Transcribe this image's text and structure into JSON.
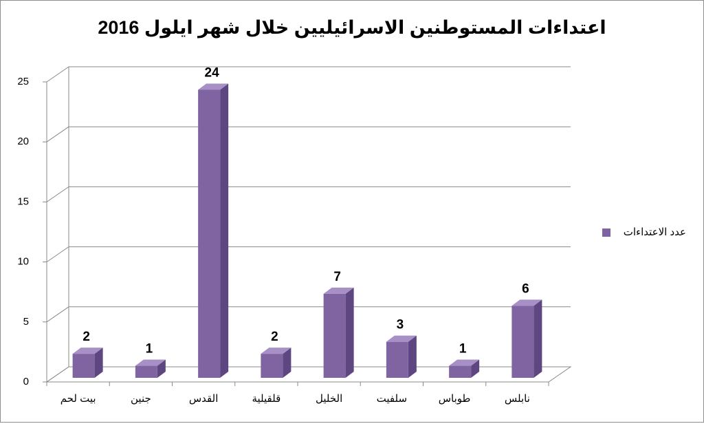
{
  "chart_data": {
    "type": "bar3d",
    "title": "اعتداءات المستوطنين الاسرائيليين خلال شهر ايلول 2016",
    "categories": [
      "بيت لحم",
      "جنين",
      "القدس",
      "قلقيلية",
      "الخليل",
      "سلفيت",
      "طوباس",
      "نابلس"
    ],
    "series": [
      {
        "name": "عدد الاعتداءات",
        "color": "#8064a2",
        "values": [
          2,
          1,
          24,
          2,
          7,
          3,
          1,
          6
        ]
      }
    ],
    "ylim": [
      0,
      25
    ],
    "yticks": [
      0,
      5,
      10,
      15,
      20,
      25
    ],
    "grid": true,
    "legend": "right"
  }
}
